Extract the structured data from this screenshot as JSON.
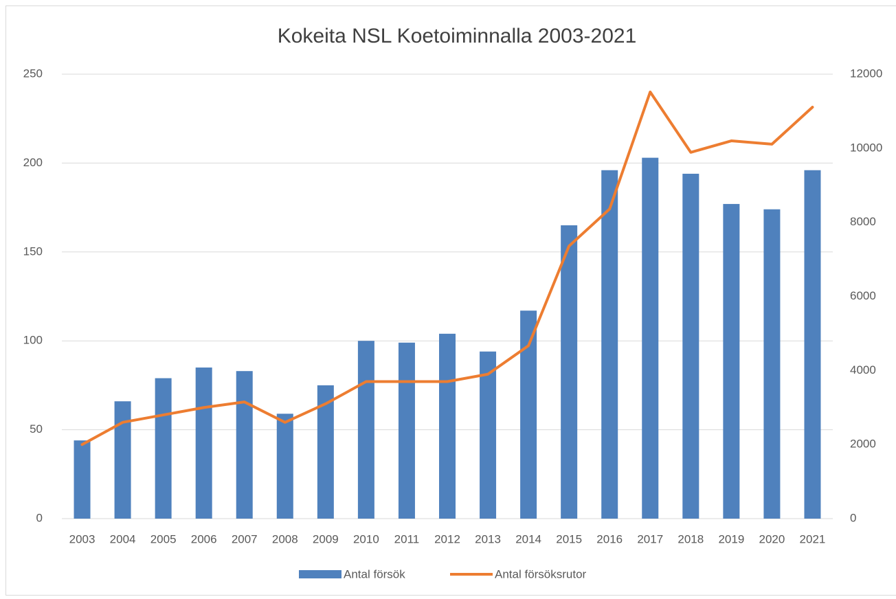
{
  "chart_data": {
    "type": "bar_line",
    "title": "Kokeita NSL Koetoiminnalla 2003-2021",
    "categories": [
      "2003",
      "2004",
      "2005",
      "2006",
      "2007",
      "2008",
      "2009",
      "2010",
      "2011",
      "2012",
      "2013",
      "2014",
      "2015",
      "2016",
      "2017",
      "2018",
      "2019",
      "2020",
      "2021"
    ],
    "series": [
      {
        "name": "Antal försök",
        "type": "bar",
        "color": "#4f81bd",
        "axis": "y",
        "values": [
          44,
          66,
          79,
          85,
          83,
          59,
          75,
          100,
          99,
          104,
          94,
          117,
          165,
          196,
          203,
          194,
          177,
          174,
          196
        ]
      },
      {
        "name": "Antal försöksrutor",
        "type": "line",
        "color": "#ed7d31",
        "axis": "y2",
        "values": [
          2000,
          2600,
          2800,
          3000,
          3150,
          2600,
          3100,
          3700,
          3700,
          3700,
          3900,
          4670,
          7360,
          8360,
          11520,
          9890,
          10200,
          10110,
          11110
        ]
      }
    ],
    "ylim": [
      0,
      250
    ],
    "yticks": [
      0,
      50,
      100,
      150,
      200,
      250
    ],
    "y2lim": [
      0,
      12000
    ],
    "y2ticks": [
      0,
      2000,
      4000,
      6000,
      8000,
      10000,
      12000
    ],
    "grid": true,
    "legend": "bottom"
  }
}
